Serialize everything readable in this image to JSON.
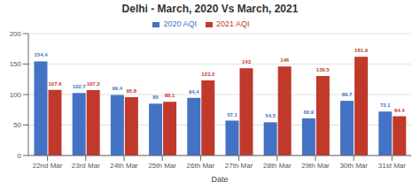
{
  "chart_data": {
    "type": "bar",
    "title": "Delhi - March, 2020 Vs March, 2021",
    "xlabel": "Date",
    "categories": [
      "22nd Mar",
      "23rd Mar",
      "24th Mar",
      "25th Mar",
      "26th Mar",
      "27th Mar",
      "28th Mar",
      "29th Mar",
      "30th Mar",
      "31st Mar"
    ],
    "series": [
      {
        "name": "2020 AQI",
        "color": "#4472C4",
        "values": [
          154.4,
          102.7,
          99.4,
          85,
          94.4,
          57.1,
          54.5,
          60.9,
          89.7,
          72.1
        ]
      },
      {
        "name": "2021 AQI",
        "color": "#C0392B",
        "values": [
          107.6,
          107.3,
          95.8,
          88.1,
          123.2,
          143,
          146,
          130.5,
          161.9,
          64.4
        ]
      }
    ],
    "ylim": [
      0,
      200
    ],
    "yticks": [
      0,
      50,
      100,
      150,
      200
    ],
    "grid": true,
    "legend": "top",
    "data_labels": true
  }
}
